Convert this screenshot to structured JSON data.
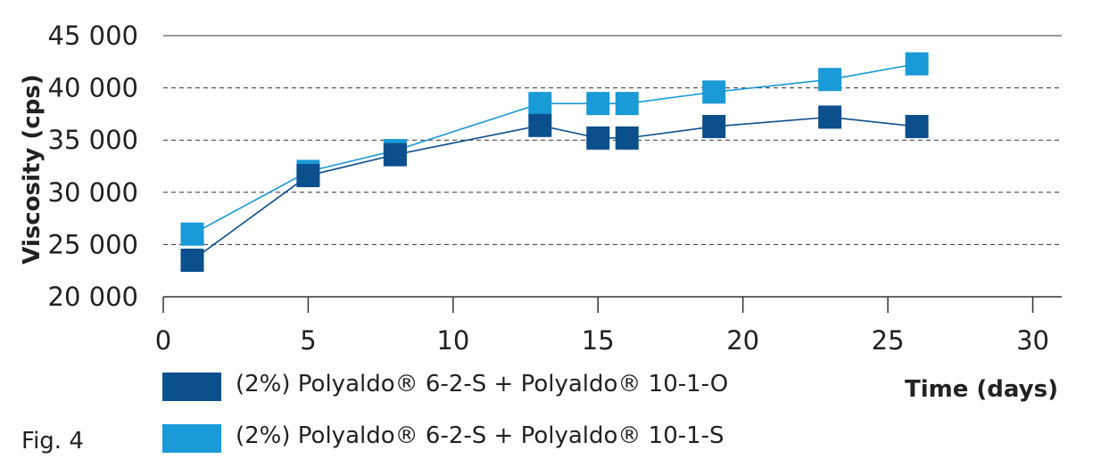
{
  "figure_label": "Fig. 4",
  "chart_data": {
    "type": "line",
    "xlabel": "Time (days)",
    "ylabel": "Viscosity (cps)",
    "xlim": [
      0,
      31
    ],
    "ylim": [
      20000,
      45000
    ],
    "xticks": [
      0,
      5,
      10,
      15,
      20,
      25,
      30
    ],
    "yticks": [
      20000,
      25000,
      30000,
      35000,
      40000,
      45000
    ],
    "ytick_labels": [
      "20 000",
      "25 000",
      "30 000",
      "35 000",
      "40 000",
      "45 000"
    ],
    "grid": "horizontal-dashed",
    "legend_position": "bottom",
    "series": [
      {
        "name": "(2%) Polyaldo® 6-2-S + Polyaldo® 10-1-S",
        "color": "#1a9ad6",
        "x": [
          1,
          5,
          8,
          13,
          15,
          16,
          19,
          23,
          26
        ],
        "y": [
          26000,
          32000,
          34000,
          38500,
          38500,
          38500,
          39600,
          40800,
          42300
        ]
      },
      {
        "name": "(2%) Polyaldo® 6-2-S + Polyaldo® 10-1-O",
        "color": "#0b4f8c",
        "x": [
          1,
          5,
          8,
          13,
          15,
          16,
          19,
          23,
          26
        ],
        "y": [
          23500,
          31600,
          33600,
          36400,
          35200,
          35200,
          36300,
          37200,
          36300
        ]
      }
    ]
  }
}
